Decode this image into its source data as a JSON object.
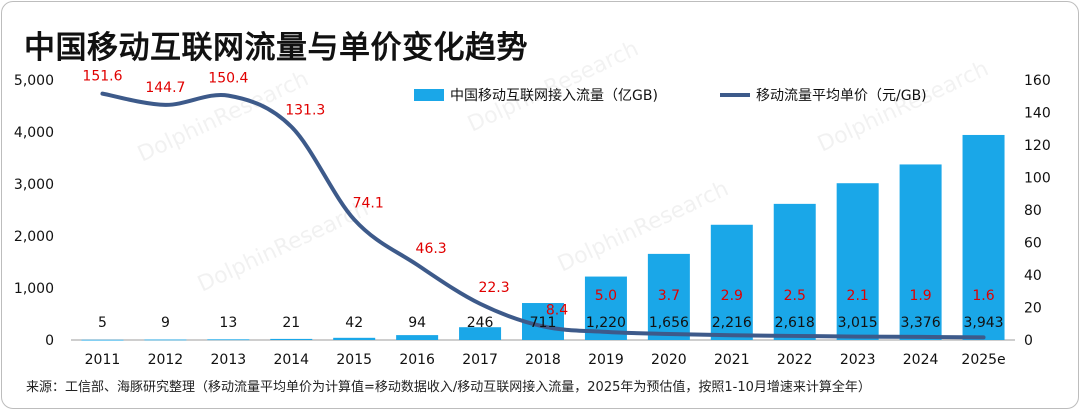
{
  "title": "中国移动互联网流量与单价变化趋势",
  "source": "来源：工信部、海豚研究整理（移动流量平均单价为计算值=移动数据收入/移动互联网接入流量，2025年为预估值，按照1-10月增速来计算全年）",
  "watermark": "DolphinResearch",
  "chart_data": {
    "type": "bar",
    "categories": [
      "2011",
      "2012",
      "2013",
      "2014",
      "2015",
      "2016",
      "2017",
      "2018",
      "2019",
      "2020",
      "2021",
      "2022",
      "2023",
      "2024",
      "2025e"
    ],
    "series": [
      {
        "name": "中国移动互联网接入流量（亿GB)",
        "type": "bar",
        "axis": "left",
        "color": "#1aa7e8",
        "values": [
          5,
          9,
          13,
          21,
          42,
          94,
          246,
          711,
          1220,
          1656,
          2216,
          2618,
          3015,
          3376,
          3943
        ],
        "labels": [
          "5",
          "9",
          "13",
          "21",
          "42",
          "94",
          "246",
          "711",
          "1,220",
          "1,656",
          "2,216",
          "2,618",
          "3,015",
          "3,376",
          "3,943"
        ]
      },
      {
        "name": "移动流量平均单价（元/GB)",
        "type": "line",
        "axis": "right",
        "color": "#3d5a8a",
        "label_color": "#e00000",
        "values": [
          151.6,
          144.7,
          150.4,
          131.3,
          74.1,
          46.3,
          22.3,
          8.4,
          5.0,
          3.7,
          2.9,
          2.5,
          2.1,
          1.9,
          1.6
        ],
        "labels": [
          "151.6",
          "144.7",
          "150.4",
          "131.3",
          "74.1",
          "46.3",
          "22.3",
          "8.4",
          "5.0",
          "3.7",
          "2.9",
          "2.5",
          "2.1",
          "1.9",
          "1.6"
        ]
      }
    ],
    "y_left": {
      "min": 0,
      "max": 5000,
      "ticks": [
        0,
        1000,
        2000,
        3000,
        4000,
        5000
      ],
      "tick_labels": [
        "0",
        "1,000",
        "2,000",
        "3,000",
        "4,000",
        "5,000"
      ]
    },
    "y_right": {
      "min": 0,
      "max": 160,
      "ticks": [
        0,
        20,
        40,
        60,
        80,
        100,
        120,
        140,
        160
      ],
      "tick_labels": [
        "0",
        "20",
        "40",
        "60",
        "80",
        "100",
        "120",
        "140",
        "160"
      ]
    },
    "grid": false,
    "legend_position": "top-right"
  }
}
